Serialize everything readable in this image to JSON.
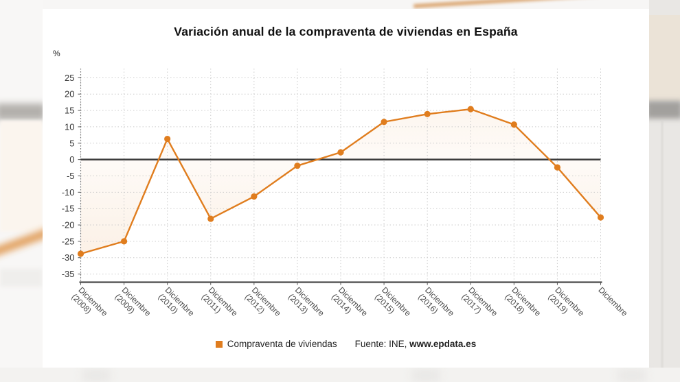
{
  "chart_data": {
    "type": "line",
    "title": "Variación anual de la compraventa de viviendas en España",
    "unit": "%",
    "categories": [
      "Diciembre (2008)",
      "Diciembre (2009)",
      "Diciembre (2010)",
      "Diciembre (2011)",
      "Diciembre (2012)",
      "Diciembre (2013)",
      "Diciembre (2014)",
      "Diciembre (2015)",
      "Diciembre (2016)",
      "Diciembre (2017)",
      "Diciembre (2018)",
      "Diciembre (2019)",
      "Diciembre"
    ],
    "series": [
      {
        "name": "Compraventa de viviendas",
        "values": [
          -28.8,
          -25,
          6.3,
          -18.1,
          -11.3,
          -1.9,
          2.2,
          11.5,
          13.9,
          15.4,
          10.7,
          -2.4,
          -17.7
        ]
      }
    ],
    "yticks": [
      25,
      20,
      15,
      10,
      5,
      0,
      -5,
      -10,
      -15,
      -20,
      -25,
      -30,
      -35
    ],
    "ylim": [
      -37.5,
      27.8
    ],
    "grid": true,
    "zero_baseline": true,
    "legend_position": "bottom",
    "colors": {
      "line": "#e07d1e",
      "zero_line": "#3b3b3b",
      "axis": "#4a4a4a",
      "grid": "#cbcbcb",
      "tick_text": "#333333",
      "x_label_text": "#4a4a4a",
      "area_fill": "#e07d1e"
    }
  },
  "legend": {
    "series_label": "Compraventa de viviendas",
    "source_prefix": "Fuente: INE, ",
    "source_link": "www.epdata.es"
  }
}
